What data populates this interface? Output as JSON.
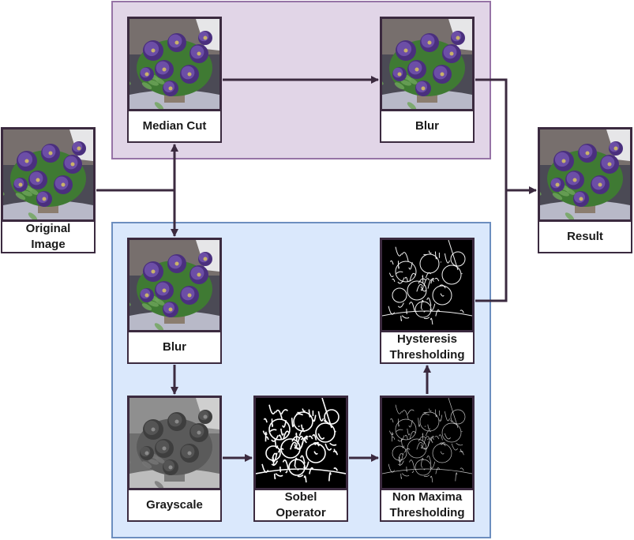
{
  "colors": {
    "top_group_fill": "#e1d5e7",
    "top_group_border": "#9673a6",
    "bottom_group_fill": "#dae8fc",
    "bottom_group_border": "#6c8ebf",
    "edge": "#3b2a3f"
  },
  "nodes": {
    "original": {
      "label": "Original\nImage",
      "image": "flower-color"
    },
    "median_cut": {
      "label": "Median Cut",
      "image": "flower-color"
    },
    "blur_top": {
      "label": "Blur",
      "image": "flower-color"
    },
    "result": {
      "label": "Result",
      "image": "flower-color"
    },
    "blur_bottom": {
      "label": "Blur",
      "image": "flower-color"
    },
    "grayscale": {
      "label": "Grayscale",
      "image": "flower-gray"
    },
    "sobel": {
      "label": "Sobel\nOperator",
      "image": "edges-thick"
    },
    "non_maxima": {
      "label": "Non Maxima\nThresholding",
      "image": "edges-thin"
    },
    "hysteresis": {
      "label": "Hysteresis\nThresholding",
      "image": "edges-medium"
    }
  }
}
